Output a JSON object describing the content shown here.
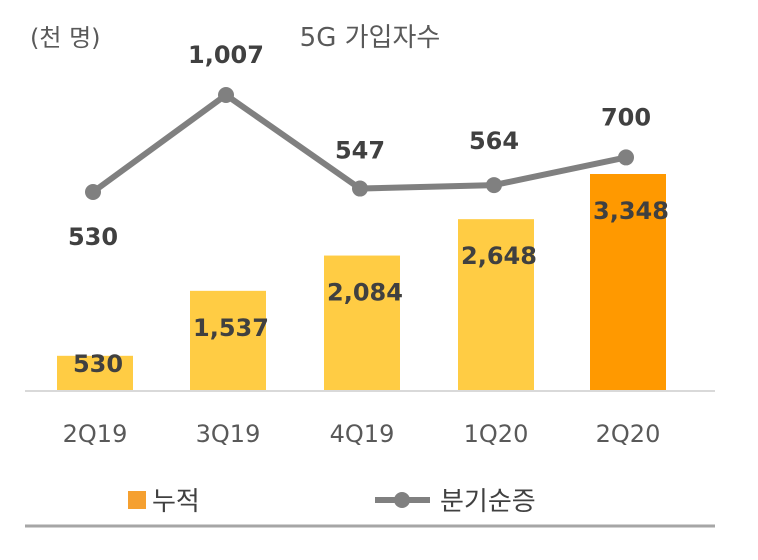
{
  "chart_data": {
    "type": "bar+line",
    "title": "5G 가입자수",
    "unit_label": "(천 명)",
    "categories": [
      "2Q19",
      "3Q19",
      "4Q19",
      "1Q20",
      "2Q20"
    ],
    "series": [
      {
        "name": "누적",
        "type": "bar",
        "values": [
          530,
          1537,
          2084,
          2648,
          3348
        ],
        "labels": [
          "530",
          "1,537",
          "2,084",
          "2,648",
          "3,348"
        ]
      },
      {
        "name": "분기순증",
        "type": "line",
        "values": [
          530,
          1007,
          547,
          564,
          700
        ],
        "labels": [
          "530",
          "1,007",
          "547",
          "564",
          "700"
        ]
      }
    ],
    "colors": {
      "bar": "#FFCC44",
      "bar_highlight": "#FF9900",
      "line": "#808080",
      "legend_bar": "#F5A030",
      "text": "#404040"
    },
    "grid": false,
    "legend": "bottom"
  }
}
